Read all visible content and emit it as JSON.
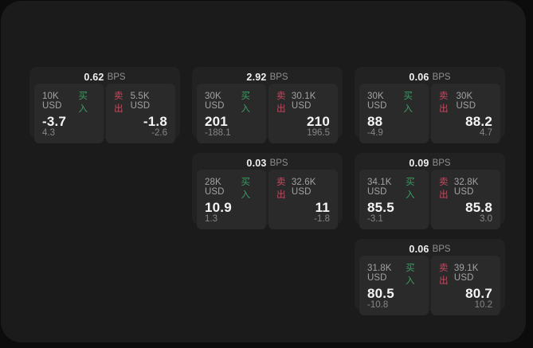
{
  "labels": {
    "bps_unit": "BPS",
    "buy": "买入",
    "sell": "卖出"
  },
  "colors": {
    "background": "#0c0c0c",
    "panel": "#1b1b1b",
    "card": "#222222",
    "tile": "#2a2a2a",
    "buy_green": "#3a9e63",
    "sell_red": "#c34a5f"
  },
  "cards": [
    {
      "bps": "0.62",
      "buy": {
        "amount": "10K USD",
        "price": "-3.7",
        "change": "4.3"
      },
      "sell": {
        "amount": "5.5K USD",
        "price": "-1.8",
        "change": "-2.6"
      }
    },
    {
      "bps": "2.92",
      "buy": {
        "amount": "30K USD",
        "price": "201",
        "change": "-188.1"
      },
      "sell": {
        "amount": "30.1K USD",
        "price": "210",
        "change": "196.5"
      }
    },
    {
      "bps": "0.06",
      "buy": {
        "amount": "30K USD",
        "price": "88",
        "change": "-4.9"
      },
      "sell": {
        "amount": "30K USD",
        "price": "88.2",
        "change": "4.7"
      }
    },
    {
      "bps": "0.03",
      "buy": {
        "amount": "28K USD",
        "price": "10.9",
        "change": "1.3"
      },
      "sell": {
        "amount": "32.6K USD",
        "price": "11",
        "change": "-1.8"
      }
    },
    {
      "bps": "0.09",
      "buy": {
        "amount": "34.1K USD",
        "price": "85.5",
        "change": "-3.1"
      },
      "sell": {
        "amount": "32.8K USD",
        "price": "85.8",
        "change": "3.0"
      }
    },
    {
      "bps": "0.06",
      "buy": {
        "amount": "31.8K USD",
        "price": "80.5",
        "change": "-10.8"
      },
      "sell": {
        "amount": "39.1K USD",
        "price": "80.7",
        "change": "10.2"
      }
    }
  ]
}
